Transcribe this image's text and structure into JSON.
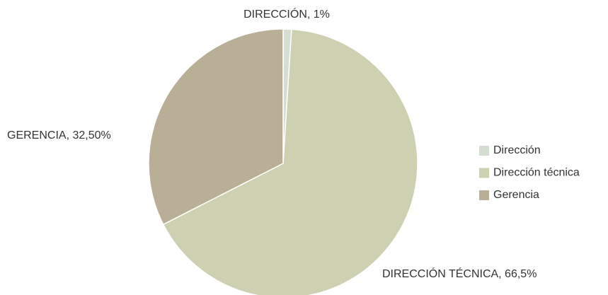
{
  "chart_data": {
    "type": "pie",
    "categories": [
      "Dirección",
      "Dirección técnica",
      "Gerencia"
    ],
    "values": [
      1,
      66.5,
      32.5
    ],
    "value_labels": [
      "DIRECCIÓN, 1%",
      "DIRECCIÓN TÉCNICA, 66,5%",
      "GERENCIA, 32,50%"
    ],
    "colors": [
      "#d6ddd3",
      "#cdd0b1",
      "#b8af96"
    ],
    "legend": "right"
  }
}
